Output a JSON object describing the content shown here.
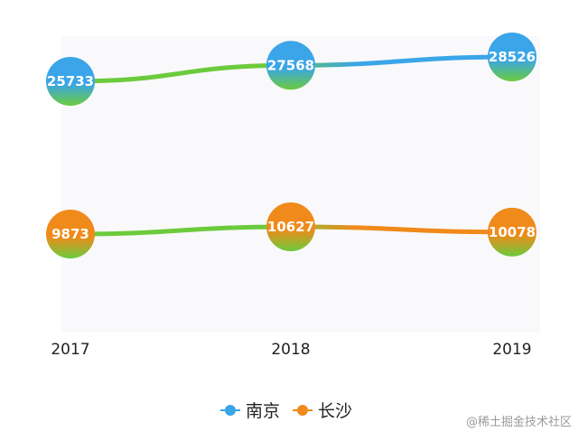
{
  "chart_data": {
    "type": "line",
    "categories": [
      "2017",
      "2018",
      "2019"
    ],
    "series": [
      {
        "name": "南京",
        "values": [
          25733,
          27568,
          28526
        ],
        "color": "#3aa5e8",
        "gradient_end": "#6ccb3c"
      },
      {
        "name": "长沙",
        "values": [
          9873,
          10627,
          10078
        ],
        "color": "#f08a1a",
        "gradient_end": "#6ccb3c"
      }
    ],
    "title": "",
    "xlabel": "",
    "ylabel": "",
    "ylim": [
      0,
      30000
    ],
    "grid": false,
    "legend_position": "bottom-center",
    "data_labels": true
  },
  "watermark": "@稀土掘金技术社区"
}
